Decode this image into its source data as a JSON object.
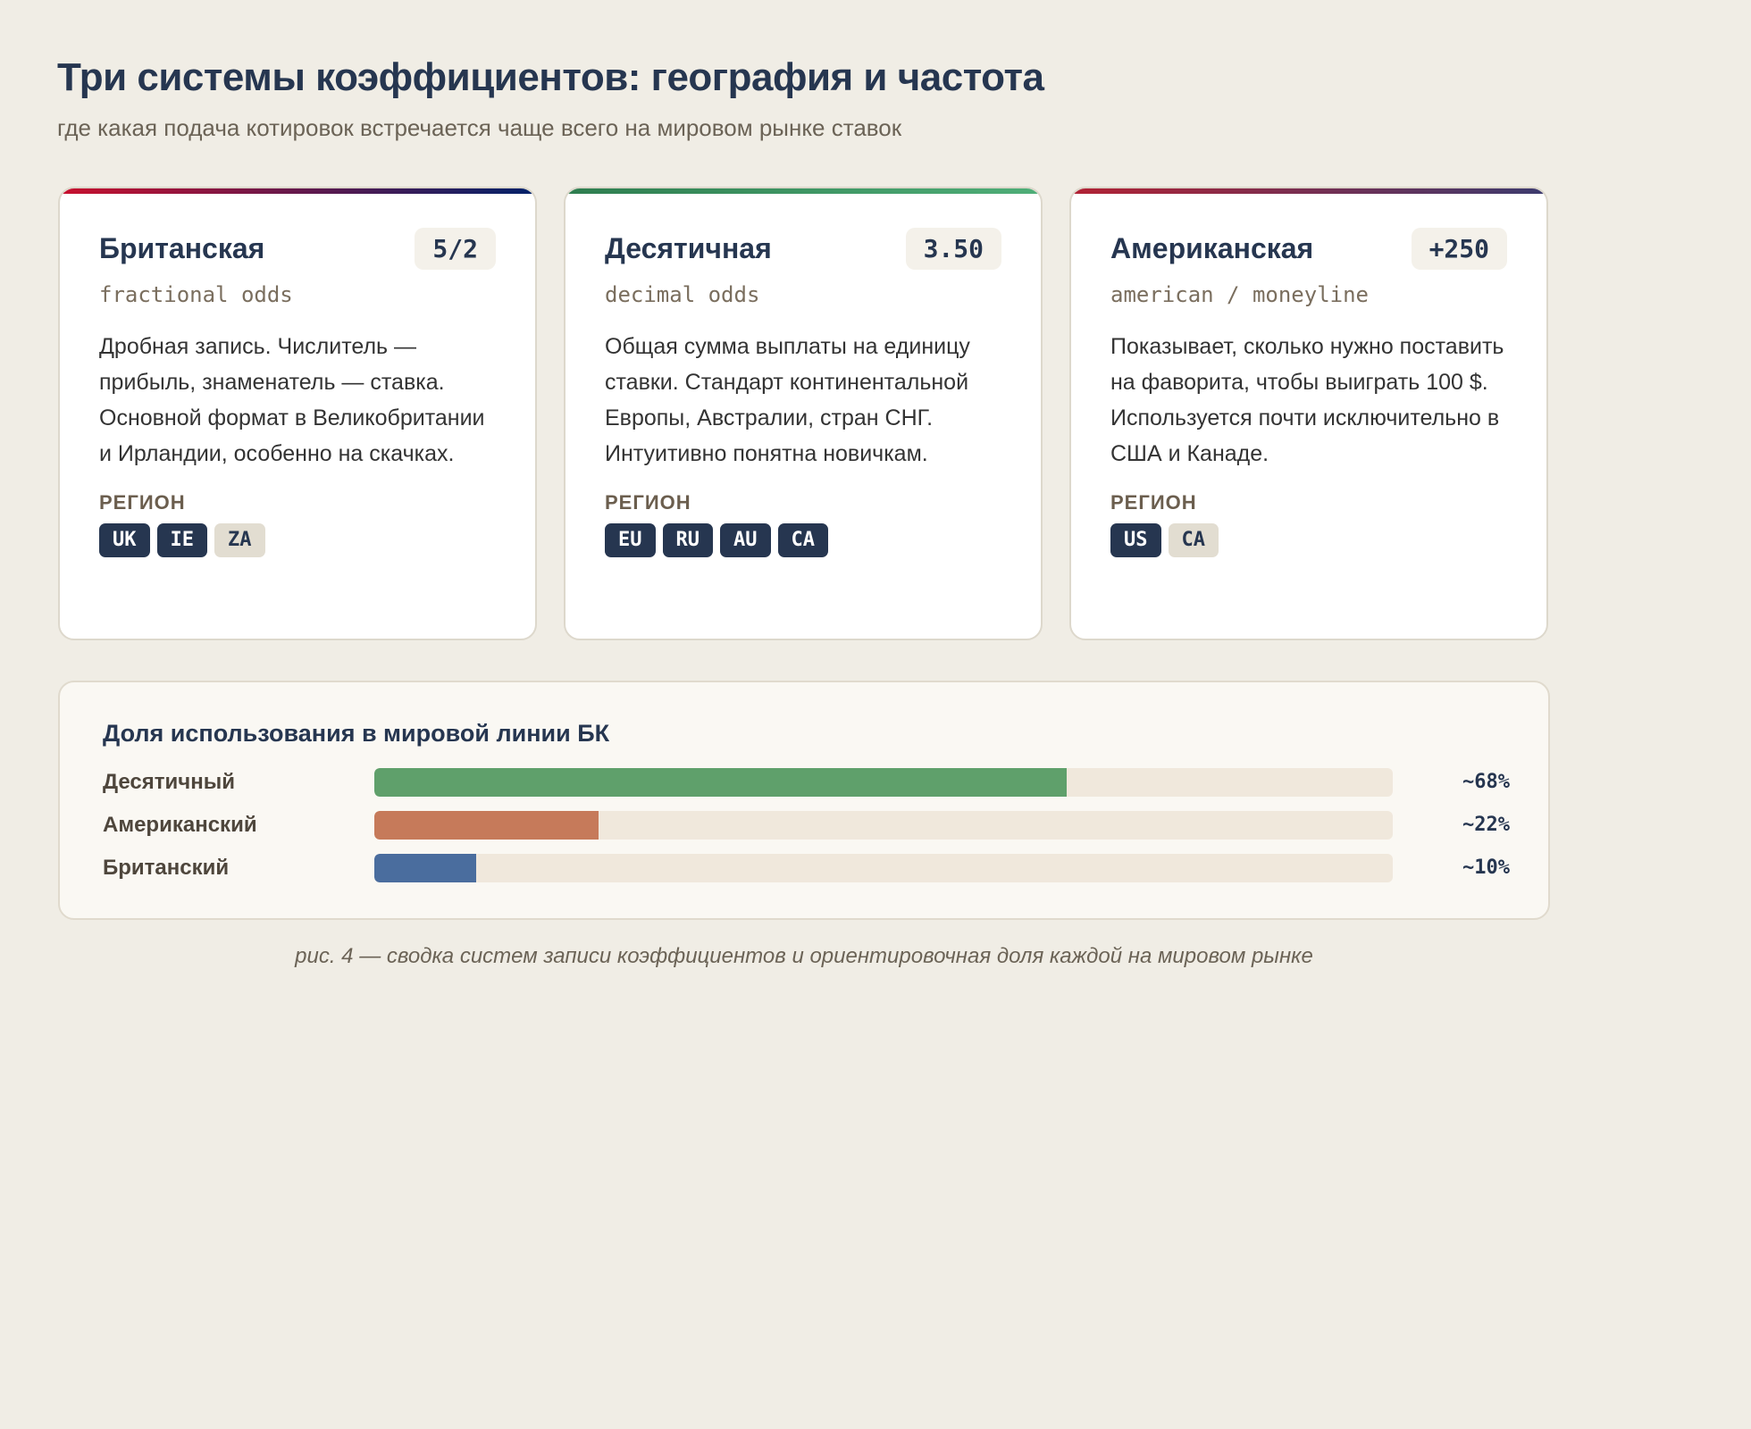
{
  "header": {
    "title": "Три системы коэффициентов: география и частота",
    "subtitle": "где какая подача котировок встречается чаще всего на мировом рынке ставок"
  },
  "cards": [
    {
      "title": "Британская",
      "example": "5/2",
      "subtitle": "fractional odds",
      "description": "Дробная запись. Числитель — прибыль, знаменатель — ставка. Основной формат в Великобритании и Ирландии, особенно на скачках.",
      "region_label": "РЕГИОН",
      "gradient": [
        "#c8102e",
        "#012169"
      ],
      "regions": [
        {
          "code": "UK",
          "primary": true
        },
        {
          "code": "IE",
          "primary": true
        },
        {
          "code": "ZA",
          "primary": false
        }
      ]
    },
    {
      "title": "Десятичная",
      "example": "3.50",
      "subtitle": "decimal odds",
      "description": "Общая сумма выплаты на единицу ставки. Стандарт континентальной Европы, Австралии, стран СНГ. Интуитивно понятна новичкам.",
      "region_label": "РЕГИОН",
      "gradient": [
        "#2e7d4f",
        "#4fae78"
      ],
      "regions": [
        {
          "code": "EU",
          "primary": true
        },
        {
          "code": "RU",
          "primary": true
        },
        {
          "code": "AU",
          "primary": true
        },
        {
          "code": "CA",
          "primary": true
        }
      ]
    },
    {
      "title": "Американская",
      "example": "+250",
      "subtitle": "american / moneyline",
      "description": "Показывает, сколько нужно поставить на фаворита, чтобы выиграть 100 $. Используется почти исключительно в США и Канаде.",
      "region_label": "РЕГИОН",
      "gradient": [
        "#b22234",
        "#3c3b6e"
      ],
      "regions": [
        {
          "code": "US",
          "primary": true
        },
        {
          "code": "CA",
          "primary": false
        }
      ]
    }
  ],
  "usage": {
    "title": "Доля использования в мировой линии БК",
    "rows": [
      {
        "label": "Десятичный",
        "value": 68,
        "display": "~68%",
        "color": "#5fa06b"
      },
      {
        "label": "Американский",
        "value": 22,
        "display": "~22%",
        "color": "#c67a5a"
      },
      {
        "label": "Британский",
        "value": 10,
        "display": "~10%",
        "color": "#4a6d9e"
      }
    ]
  },
  "caption": "рис. 4 — сводка систем записи коэффициентов и ориентировочная доля каждой на мировом рынке"
}
